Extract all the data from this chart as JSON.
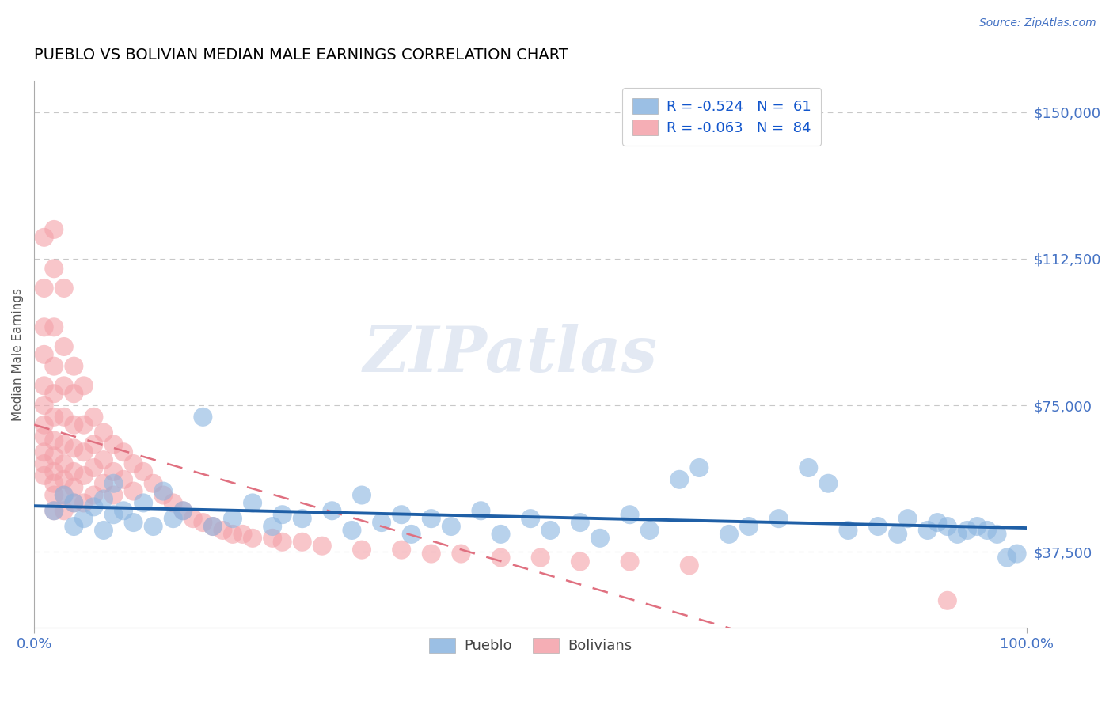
{
  "title": "PUEBLO VS BOLIVIAN MEDIAN MALE EARNINGS CORRELATION CHART",
  "source_text": "Source: ZipAtlas.com",
  "ylabel": "Median Male Earnings",
  "watermark": "ZIPatlas",
  "y_tick_labels": [
    "$37,500",
    "$75,000",
    "$112,500",
    "$150,000"
  ],
  "y_tick_values": [
    37500,
    75000,
    112500,
    150000
  ],
  "x_tick_labels": [
    "0.0%",
    "100.0%"
  ],
  "xlim": [
    0.0,
    1.0
  ],
  "ylim": [
    18000,
    158000
  ],
  "blue_color": "#8ab4e0",
  "pink_color": "#f4a0a8",
  "blue_line_color": "#1f5fa6",
  "pink_line_color": "#e07080",
  "grid_color": "#c8c8c8",
  "x_tick_color": "#4472c4",
  "legend_r_blue": "R = -0.524",
  "legend_n_blue": "N =  61",
  "legend_r_pink": "R = -0.063",
  "legend_n_pink": "N =  84",
  "background_color": "#ffffff",
  "legend_text_color": "#1155cc",
  "right_label_color": "#4472c4",
  "title_color": "#000000",
  "ylabel_color": "#555555",
  "watermark_color": "#c8d4e8",
  "watermark_alpha": 0.5,
  "pueblo_x": [
    0.02,
    0.03,
    0.04,
    0.04,
    0.05,
    0.06,
    0.07,
    0.07,
    0.08,
    0.08,
    0.09,
    0.1,
    0.11,
    0.12,
    0.13,
    0.14,
    0.15,
    0.17,
    0.18,
    0.2,
    0.22,
    0.24,
    0.25,
    0.27,
    0.3,
    0.32,
    0.33,
    0.35,
    0.37,
    0.38,
    0.4,
    0.42,
    0.45,
    0.47,
    0.5,
    0.52,
    0.55,
    0.57,
    0.6,
    0.62,
    0.65,
    0.67,
    0.7,
    0.72,
    0.75,
    0.78,
    0.8,
    0.82,
    0.85,
    0.87,
    0.88,
    0.9,
    0.91,
    0.92,
    0.93,
    0.94,
    0.95,
    0.96,
    0.97,
    0.98,
    0.99
  ],
  "pueblo_y": [
    48000,
    52000,
    44000,
    50000,
    46000,
    49000,
    51000,
    43000,
    47000,
    55000,
    48000,
    45000,
    50000,
    44000,
    53000,
    46000,
    48000,
    72000,
    44000,
    46000,
    50000,
    44000,
    47000,
    46000,
    48000,
    43000,
    52000,
    45000,
    47000,
    42000,
    46000,
    44000,
    48000,
    42000,
    46000,
    43000,
    45000,
    41000,
    47000,
    43000,
    56000,
    59000,
    42000,
    44000,
    46000,
    59000,
    55000,
    43000,
    44000,
    42000,
    46000,
    43000,
    45000,
    44000,
    42000,
    43000,
    44000,
    43000,
    42000,
    36000,
    37000
  ],
  "bolivian_x": [
    0.01,
    0.01,
    0.01,
    0.01,
    0.01,
    0.01,
    0.01,
    0.01,
    0.01,
    0.01,
    0.01,
    0.02,
    0.02,
    0.02,
    0.02,
    0.02,
    0.02,
    0.02,
    0.02,
    0.02,
    0.02,
    0.02,
    0.02,
    0.03,
    0.03,
    0.03,
    0.03,
    0.03,
    0.03,
    0.03,
    0.03,
    0.03,
    0.04,
    0.04,
    0.04,
    0.04,
    0.04,
    0.04,
    0.04,
    0.05,
    0.05,
    0.05,
    0.05,
    0.05,
    0.06,
    0.06,
    0.06,
    0.06,
    0.07,
    0.07,
    0.07,
    0.08,
    0.08,
    0.08,
    0.09,
    0.09,
    0.1,
    0.1,
    0.11,
    0.12,
    0.13,
    0.14,
    0.15,
    0.16,
    0.17,
    0.18,
    0.19,
    0.2,
    0.21,
    0.22,
    0.24,
    0.25,
    0.27,
    0.29,
    0.33,
    0.37,
    0.4,
    0.43,
    0.47,
    0.51,
    0.55,
    0.6,
    0.66,
    0.92
  ],
  "bolivian_y": [
    118000,
    105000,
    95000,
    88000,
    80000,
    75000,
    70000,
    67000,
    63000,
    60000,
    57000,
    120000,
    110000,
    95000,
    85000,
    78000,
    72000,
    66000,
    62000,
    58000,
    55000,
    52000,
    48000,
    105000,
    90000,
    80000,
    72000,
    65000,
    60000,
    56000,
    52000,
    48000,
    85000,
    78000,
    70000,
    64000,
    58000,
    54000,
    50000,
    80000,
    70000,
    63000,
    57000,
    50000,
    72000,
    65000,
    59000,
    52000,
    68000,
    61000,
    55000,
    65000,
    58000,
    52000,
    63000,
    56000,
    60000,
    53000,
    58000,
    55000,
    52000,
    50000,
    48000,
    46000,
    45000,
    44000,
    43000,
    42000,
    42000,
    41000,
    41000,
    40000,
    40000,
    39000,
    38000,
    38000,
    37000,
    37000,
    36000,
    36000,
    35000,
    35000,
    34000,
    25000
  ]
}
